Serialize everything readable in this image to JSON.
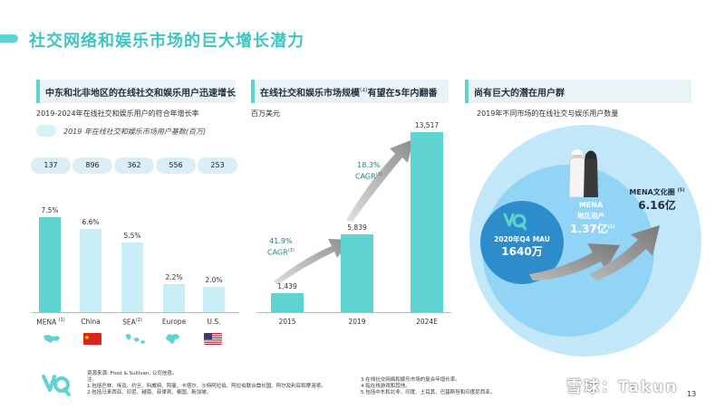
{
  "page": {
    "title": "社交网络和娱乐市场的巨大增长潜力",
    "page_number": "13",
    "watermark": "雪球：Takun"
  },
  "colors": {
    "accent": "#5ed3cf",
    "bar_strong": "#5ed3cf",
    "bar_light": "#c9eff6",
    "circle_outer": "#bfe6f8",
    "circle_mid": "#8fd3f5",
    "circle_inner": "#2f8fcb"
  },
  "panel1": {
    "heading": "中东和北非地区的在线社交和娱乐用户迅速增长",
    "subtitle": "2019-2024年在线社交和娱乐用户的符合年增长率",
    "legend": "2019 年在线社交和娱乐市场用户基数(百万)",
    "user_bases": [
      "137",
      "896",
      "362",
      "556",
      "253"
    ],
    "value_labels": [
      "7.5%",
      "6.6%",
      "5.5%",
      "2.2%",
      "2.0%"
    ],
    "categories": [
      "MENA",
      "China",
      "SEA",
      "Europe",
      "U.S."
    ],
    "category_notes": [
      "(1)",
      "",
      "(2)",
      "",
      ""
    ],
    "flag_icons": [
      "mena-map-icon",
      "china-flag-icon",
      "sea-map-icon",
      "europe-map-icon",
      "us-flag-icon"
    ]
  },
  "panel2": {
    "heading": "在线社交和娱乐市场规模",
    "heading_note": "(4)",
    "heading_tail": "有望在5年内翻番",
    "subtitle": "百万美元",
    "value_labels": [
      "1,439",
      "5,839",
      "13,517"
    ],
    "categories": [
      "2015",
      "2019",
      "2024E"
    ],
    "cagr1_value": "41.9%",
    "cagr1_label": "CAGR",
    "cagr1_note": "(3)",
    "cagr2_value": "18.3%",
    "cagr2_label": "CAGR",
    "cagr2_note": "(3)"
  },
  "panel3": {
    "heading": "尚有巨大的潜在用户群",
    "subtitle": "2019年不同市场的在线社交与娱乐用户数量",
    "inner_line1": "2020年Q4 MAU",
    "inner_line2": "1640万",
    "mid_line1": "MENA",
    "mid_line2": "地区用户",
    "mid_line3": "1.37亿",
    "mid_note": "(1)",
    "outer_line1": "MENA文化圈",
    "outer_note": "(5)",
    "outer_line2": "6.16亿"
  },
  "footnotes": {
    "left": [
      "资源来源: Frost & Sullivan, 公司信息。",
      "注:",
      "1.包括巴林、埃及、约旦、科威特、阿曼、卡塔尔、沙特阿拉伯、阿拉伯联合酋长国、阿尔及利亚和摩洛哥。",
      "2.包括马来西亚、印尼、越南、菲律宾、泰国、新加坡。"
    ],
    "right": [
      "3.在线社交网络和娱乐市场的复合年增长率。",
      "4.指在线游戏和其他。",
      "5.包括中东和北非、印度、土耳其、巴基斯坦和印度尼西亚。"
    ]
  },
  "chart_data": [
    {
      "type": "bar",
      "title": "2019-2024年在线社交和娱乐用户的符合年增长率",
      "categories": [
        "MENA",
        "China",
        "SEA",
        "Europe",
        "U.S."
      ],
      "values": [
        7.5,
        6.6,
        5.5,
        2.2,
        2.0
      ],
      "unit": "%",
      "ylim": [
        0,
        8
      ],
      "legend": "2019 年在线社交和娱乐市场用户基数(百万)",
      "user_base_millions": [
        137,
        896,
        362,
        556,
        253
      ]
    },
    {
      "type": "bar",
      "title": "在线社交和娱乐市场规模",
      "ylabel": "百万美元",
      "categories": [
        "2015",
        "2019",
        "2024E"
      ],
      "values": [
        1439,
        5839,
        13517
      ],
      "ylim": [
        0,
        14000
      ],
      "annotations": [
        "41.9% CAGR",
        "18.3% CAGR"
      ]
    }
  ]
}
